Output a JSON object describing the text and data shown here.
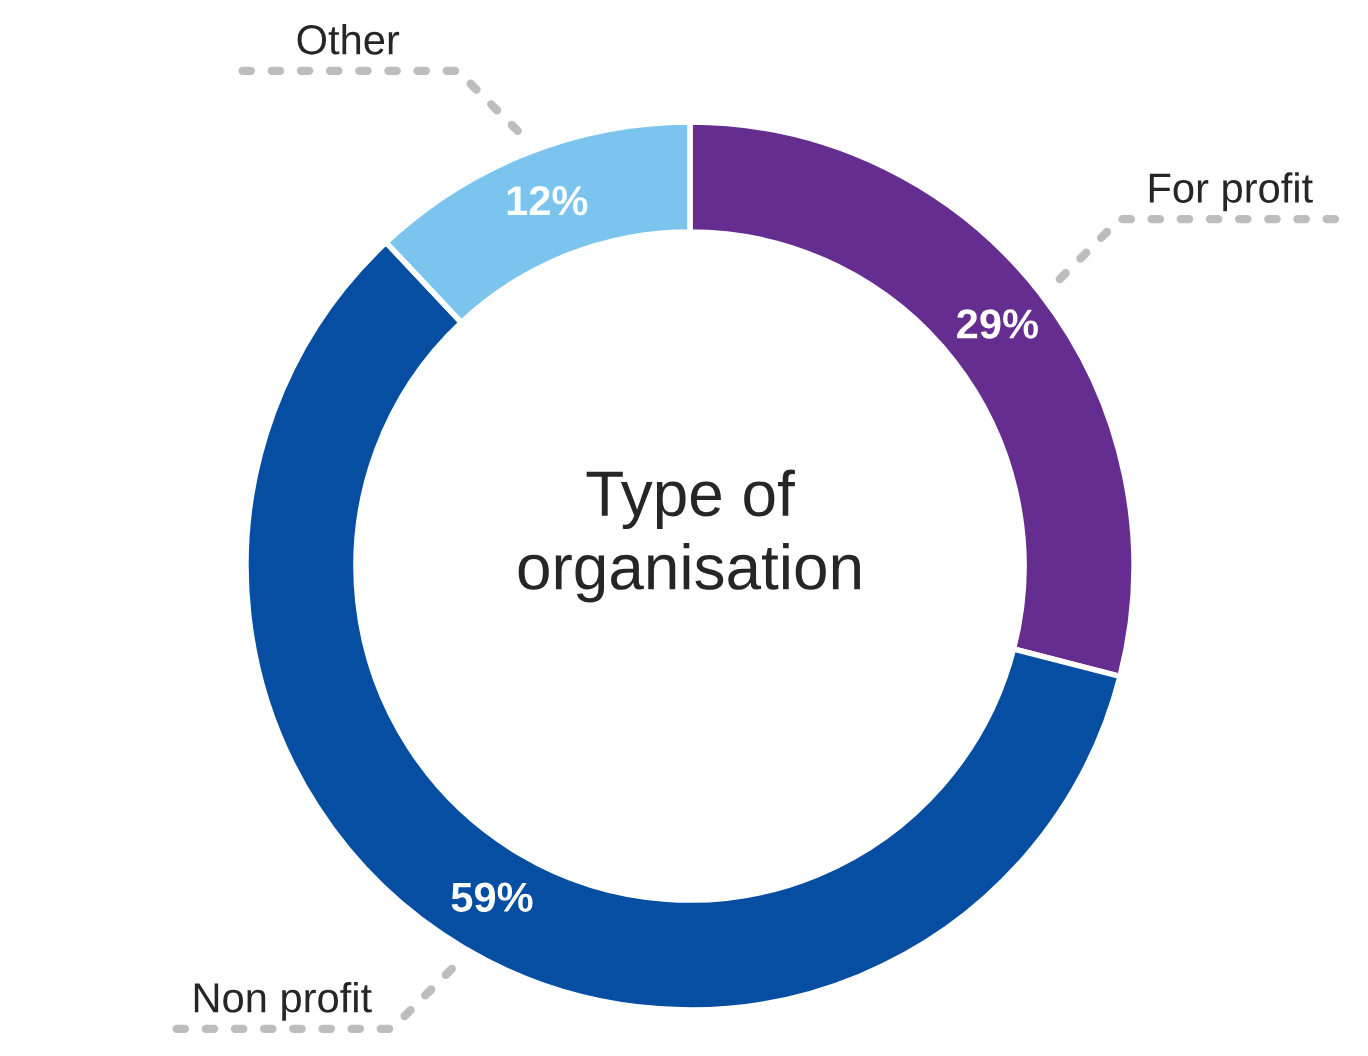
{
  "chart_data": {
    "type": "donut",
    "title": "Type of\norganisation",
    "categories": [
      "For profit",
      "Non profit",
      "Other"
    ],
    "values": [
      29,
      59,
      12
    ],
    "colors": [
      "#652d90",
      "#054ea2",
      "#7bc4ee"
    ],
    "value_labels": [
      "29%",
      "59%",
      "12%"
    ],
    "legend": false
  }
}
